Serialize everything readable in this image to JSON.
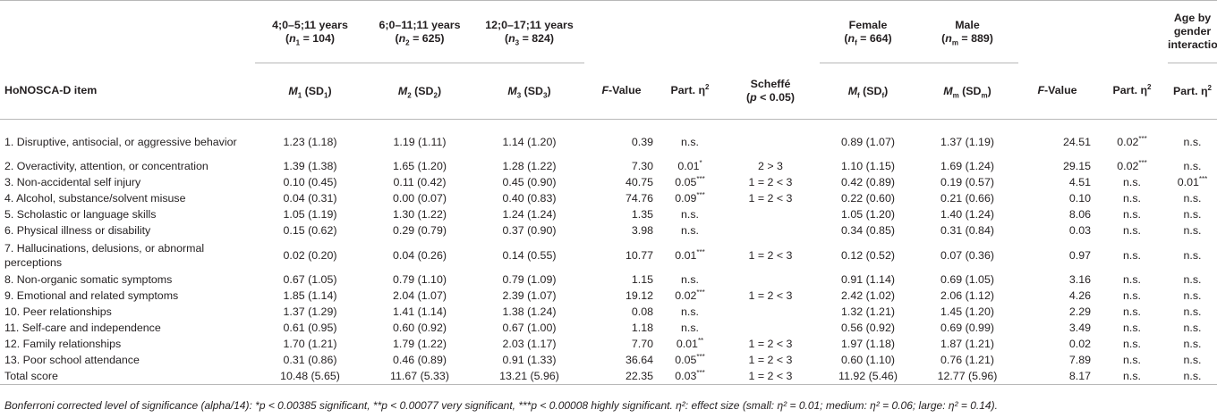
{
  "header": {
    "item_col": "HoNOSCA-D item",
    "age_groups": [
      {
        "range": "4;0–5;11 years",
        "n_label": "n",
        "n_sub": "1",
        "n_value": " = 104)"
      },
      {
        "range": "6;0–11;11 years",
        "n_label": "n",
        "n_sub": "2",
        "n_value": " = 625)"
      },
      {
        "range": "12;0–17;11 years",
        "n_label": "n",
        "n_sub": "3",
        "n_value": " = 824)"
      }
    ],
    "genders": [
      {
        "label": "Female",
        "n_label": "n",
        "n_sub": "f",
        "n_value": " = 664)"
      },
      {
        "label": "Male",
        "n_label": "n",
        "n_sub": "m",
        "n_value": " = 889)"
      }
    ],
    "interaction": "Age by gender interaction",
    "m1": {
      "m": "M",
      "sub": "1",
      "sd": " (SD",
      "sdsub": "1",
      "close": ")"
    },
    "m2": {
      "m": "M",
      "sub": "2",
      "sd": " (SD",
      "sdsub": "2",
      "close": ")"
    },
    "m3": {
      "m": "M",
      "sub": "3",
      "sd": " (SD",
      "sdsub": "3",
      "close": ")"
    },
    "mf": {
      "m": "M",
      "sub": "f",
      "sd": " (SD",
      "sdsub": "f",
      "close": ")"
    },
    "mm": {
      "m": "M",
      "sub": "m",
      "sd": " (SD",
      "sdsub": "m",
      "close": ")"
    },
    "fvalue_f": "F",
    "fvalue_rest": "-Value",
    "part_eta": "Part. η",
    "part_eta_sup": "2",
    "scheffe": "Scheffé",
    "scheffe_p_open": "(",
    "scheffe_p": "p",
    "scheffe_p_rest": " < 0.05)"
  },
  "rows": [
    {
      "item": "1. Disruptive, antisocial, or aggressive behavior",
      "m1": "1.23 (1.18)",
      "m2": "1.19 (1.11)",
      "m3": "1.14 (1.20)",
      "f_age": "0.39",
      "eta_age": "n.s.",
      "eta_age_sup": "",
      "scheffe": "",
      "mf": "0.89 (1.07)",
      "mm": "1.37 (1.19)",
      "f_gender": "24.51",
      "eta_gender": "0.02",
      "eta_gender_sup": "***",
      "eta_int": "n.s.",
      "eta_int_sup": ""
    },
    {
      "item": "2. Overactivity, attention, or concentration",
      "m1": "1.39 (1.38)",
      "m2": "1.65 (1.20)",
      "m3": "1.28 (1.22)",
      "f_age": "7.30",
      "eta_age": "0.01",
      "eta_age_sup": "*",
      "scheffe": "2 > 3",
      "mf": "1.10 (1.15)",
      "mm": "1.69 (1.24)",
      "f_gender": "29.15",
      "eta_gender": "0.02",
      "eta_gender_sup": "***",
      "eta_int": "n.s.",
      "eta_int_sup": ""
    },
    {
      "item": "3. Non-accidental self injury",
      "m1": "0.10 (0.45)",
      "m2": "0.11 (0.42)",
      "m3": "0.45 (0.90)",
      "f_age": "40.75",
      "eta_age": "0.05",
      "eta_age_sup": "***",
      "scheffe": "1 = 2 < 3",
      "mf": "0.42 (0.89)",
      "mm": "0.19 (0.57)",
      "f_gender": "4.51",
      "eta_gender": "n.s.",
      "eta_gender_sup": "",
      "eta_int": "0.01",
      "eta_int_sup": "***"
    },
    {
      "item": "4. Alcohol, substance/solvent misuse",
      "m1": "0.04 (0.31)",
      "m2": "0.00 (0.07)",
      "m3": "0.40 (0.83)",
      "f_age": "74.76",
      "eta_age": "0.09",
      "eta_age_sup": "***",
      "scheffe": "1 = 2 < 3",
      "mf": "0.22 (0.60)",
      "mm": "0.21 (0.66)",
      "f_gender": "0.10",
      "eta_gender": "n.s.",
      "eta_gender_sup": "",
      "eta_int": "n.s.",
      "eta_int_sup": ""
    },
    {
      "item": "5. Scholastic or language skills",
      "m1": "1.05 (1.19)",
      "m2": "1.30 (1.22)",
      "m3": "1.24 (1.24)",
      "f_age": "1.35",
      "eta_age": "n.s.",
      "eta_age_sup": "",
      "scheffe": "",
      "mf": "1.05 (1.20)",
      "mm": "1.40 (1.24)",
      "f_gender": "8.06",
      "eta_gender": "n.s.",
      "eta_gender_sup": "",
      "eta_int": "n.s.",
      "eta_int_sup": ""
    },
    {
      "item": "6. Physical illness or disability",
      "m1": "0.15 (0.62)",
      "m2": "0.29 (0.79)",
      "m3": "0.37 (0.90)",
      "f_age": "3.98",
      "eta_age": "n.s.",
      "eta_age_sup": "",
      "scheffe": "",
      "mf": "0.34 (0.85)",
      "mm": "0.31 (0.84)",
      "f_gender": "0.03",
      "eta_gender": "n.s.",
      "eta_gender_sup": "",
      "eta_int": "n.s.",
      "eta_int_sup": ""
    },
    {
      "item": "7. Hallucinations, delusions, or abnormal perceptions",
      "m1": "0.02 (0.20)",
      "m2": "0.04 (0.26)",
      "m3": "0.14 (0.55)",
      "f_age": "10.77",
      "eta_age": "0.01",
      "eta_age_sup": "***",
      "scheffe": "1 = 2 < 3",
      "mf": "0.12 (0.52)",
      "mm": "0.07 (0.36)",
      "f_gender": "0.97",
      "eta_gender": "n.s.",
      "eta_gender_sup": "",
      "eta_int": "n.s.",
      "eta_int_sup": ""
    },
    {
      "item": "8. Non-organic somatic symptoms",
      "m1": "0.67 (1.05)",
      "m2": "0.79 (1.10)",
      "m3": "0.79 (1.09)",
      "f_age": "1.15",
      "eta_age": "n.s.",
      "eta_age_sup": "",
      "scheffe": "",
      "mf": "0.91 (1.14)",
      "mm": "0.69 (1.05)",
      "f_gender": "3.16",
      "eta_gender": "n.s.",
      "eta_gender_sup": "",
      "eta_int": "n.s.",
      "eta_int_sup": ""
    },
    {
      "item": "9. Emotional and related symptoms",
      "m1": "1.85 (1.14)",
      "m2": "2.04 (1.07)",
      "m3": "2.39 (1.07)",
      "f_age": "19.12",
      "eta_age": "0.02",
      "eta_age_sup": "***",
      "scheffe": "1 = 2 < 3",
      "mf": "2.42 (1.02)",
      "mm": "2.06 (1.12)",
      "f_gender": "4.26",
      "eta_gender": "n.s.",
      "eta_gender_sup": "",
      "eta_int": "n.s.",
      "eta_int_sup": ""
    },
    {
      "item": "10. Peer relationships",
      "m1": "1.37 (1.29)",
      "m2": "1.41 (1.14)",
      "m3": "1.38 (1.24)",
      "f_age": "0.08",
      "eta_age": "n.s.",
      "eta_age_sup": "",
      "scheffe": "",
      "mf": "1.32 (1.21)",
      "mm": "1.45 (1.20)",
      "f_gender": "2.29",
      "eta_gender": "n.s.",
      "eta_gender_sup": "",
      "eta_int": "n.s.",
      "eta_int_sup": ""
    },
    {
      "item": "11. Self-care and independence",
      "m1": "0.61 (0.95)",
      "m2": "0.60 (0.92)",
      "m3": "0.67 (1.00)",
      "f_age": "1.18",
      "eta_age": "n.s.",
      "eta_age_sup": "",
      "scheffe": "",
      "mf": "0.56 (0.92)",
      "mm": "0.69 (0.99)",
      "f_gender": "3.49",
      "eta_gender": "n.s.",
      "eta_gender_sup": "",
      "eta_int": "n.s.",
      "eta_int_sup": ""
    },
    {
      "item": "12. Family relationships",
      "m1": "1.70 (1.21)",
      "m2": "1.79 (1.22)",
      "m3": "2.03 (1.17)",
      "f_age": "7.70",
      "eta_age": "0.01",
      "eta_age_sup": "**",
      "scheffe": "1 = 2 < 3",
      "mf": "1.97 (1.18)",
      "mm": "1.87 (1.21)",
      "f_gender": "0.02",
      "eta_gender": "n.s.",
      "eta_gender_sup": "",
      "eta_int": "n.s.",
      "eta_int_sup": ""
    },
    {
      "item": "13. Poor school attendance",
      "m1": "0.31 (0.86)",
      "m2": "0.46 (0.89)",
      "m3": "0.91 (1.33)",
      "f_age": "36.64",
      "eta_age": "0.05",
      "eta_age_sup": "***",
      "scheffe": "1 = 2 < 3",
      "mf": "0.60 (1.10)",
      "mm": "0.76 (1.21)",
      "f_gender": "7.89",
      "eta_gender": "n.s.",
      "eta_gender_sup": "",
      "eta_int": "n.s.",
      "eta_int_sup": ""
    },
    {
      "item": "Total score",
      "m1": "10.48 (5.65)",
      "m2": "11.67 (5.33)",
      "m3": "13.21 (5.96)",
      "f_age": "22.35",
      "eta_age": "0.03",
      "eta_age_sup": "***",
      "scheffe": "1 = 2 < 3",
      "mf": "11.92 (5.46)",
      "mm": "12.77 (5.96)",
      "f_gender": "8.17",
      "eta_gender": "n.s.",
      "eta_gender_sup": "",
      "eta_int": "n.s.",
      "eta_int_sup": ""
    }
  ],
  "footnote": "Bonferroni corrected level of significance (alpha/14): *p < 0.00385 significant, **p < 0.00077 very significant, ***p < 0.00008 highly significant. η²: effect size (small: η² = 0.01; medium: η² = 0.06; large: η² = 0.14)."
}
